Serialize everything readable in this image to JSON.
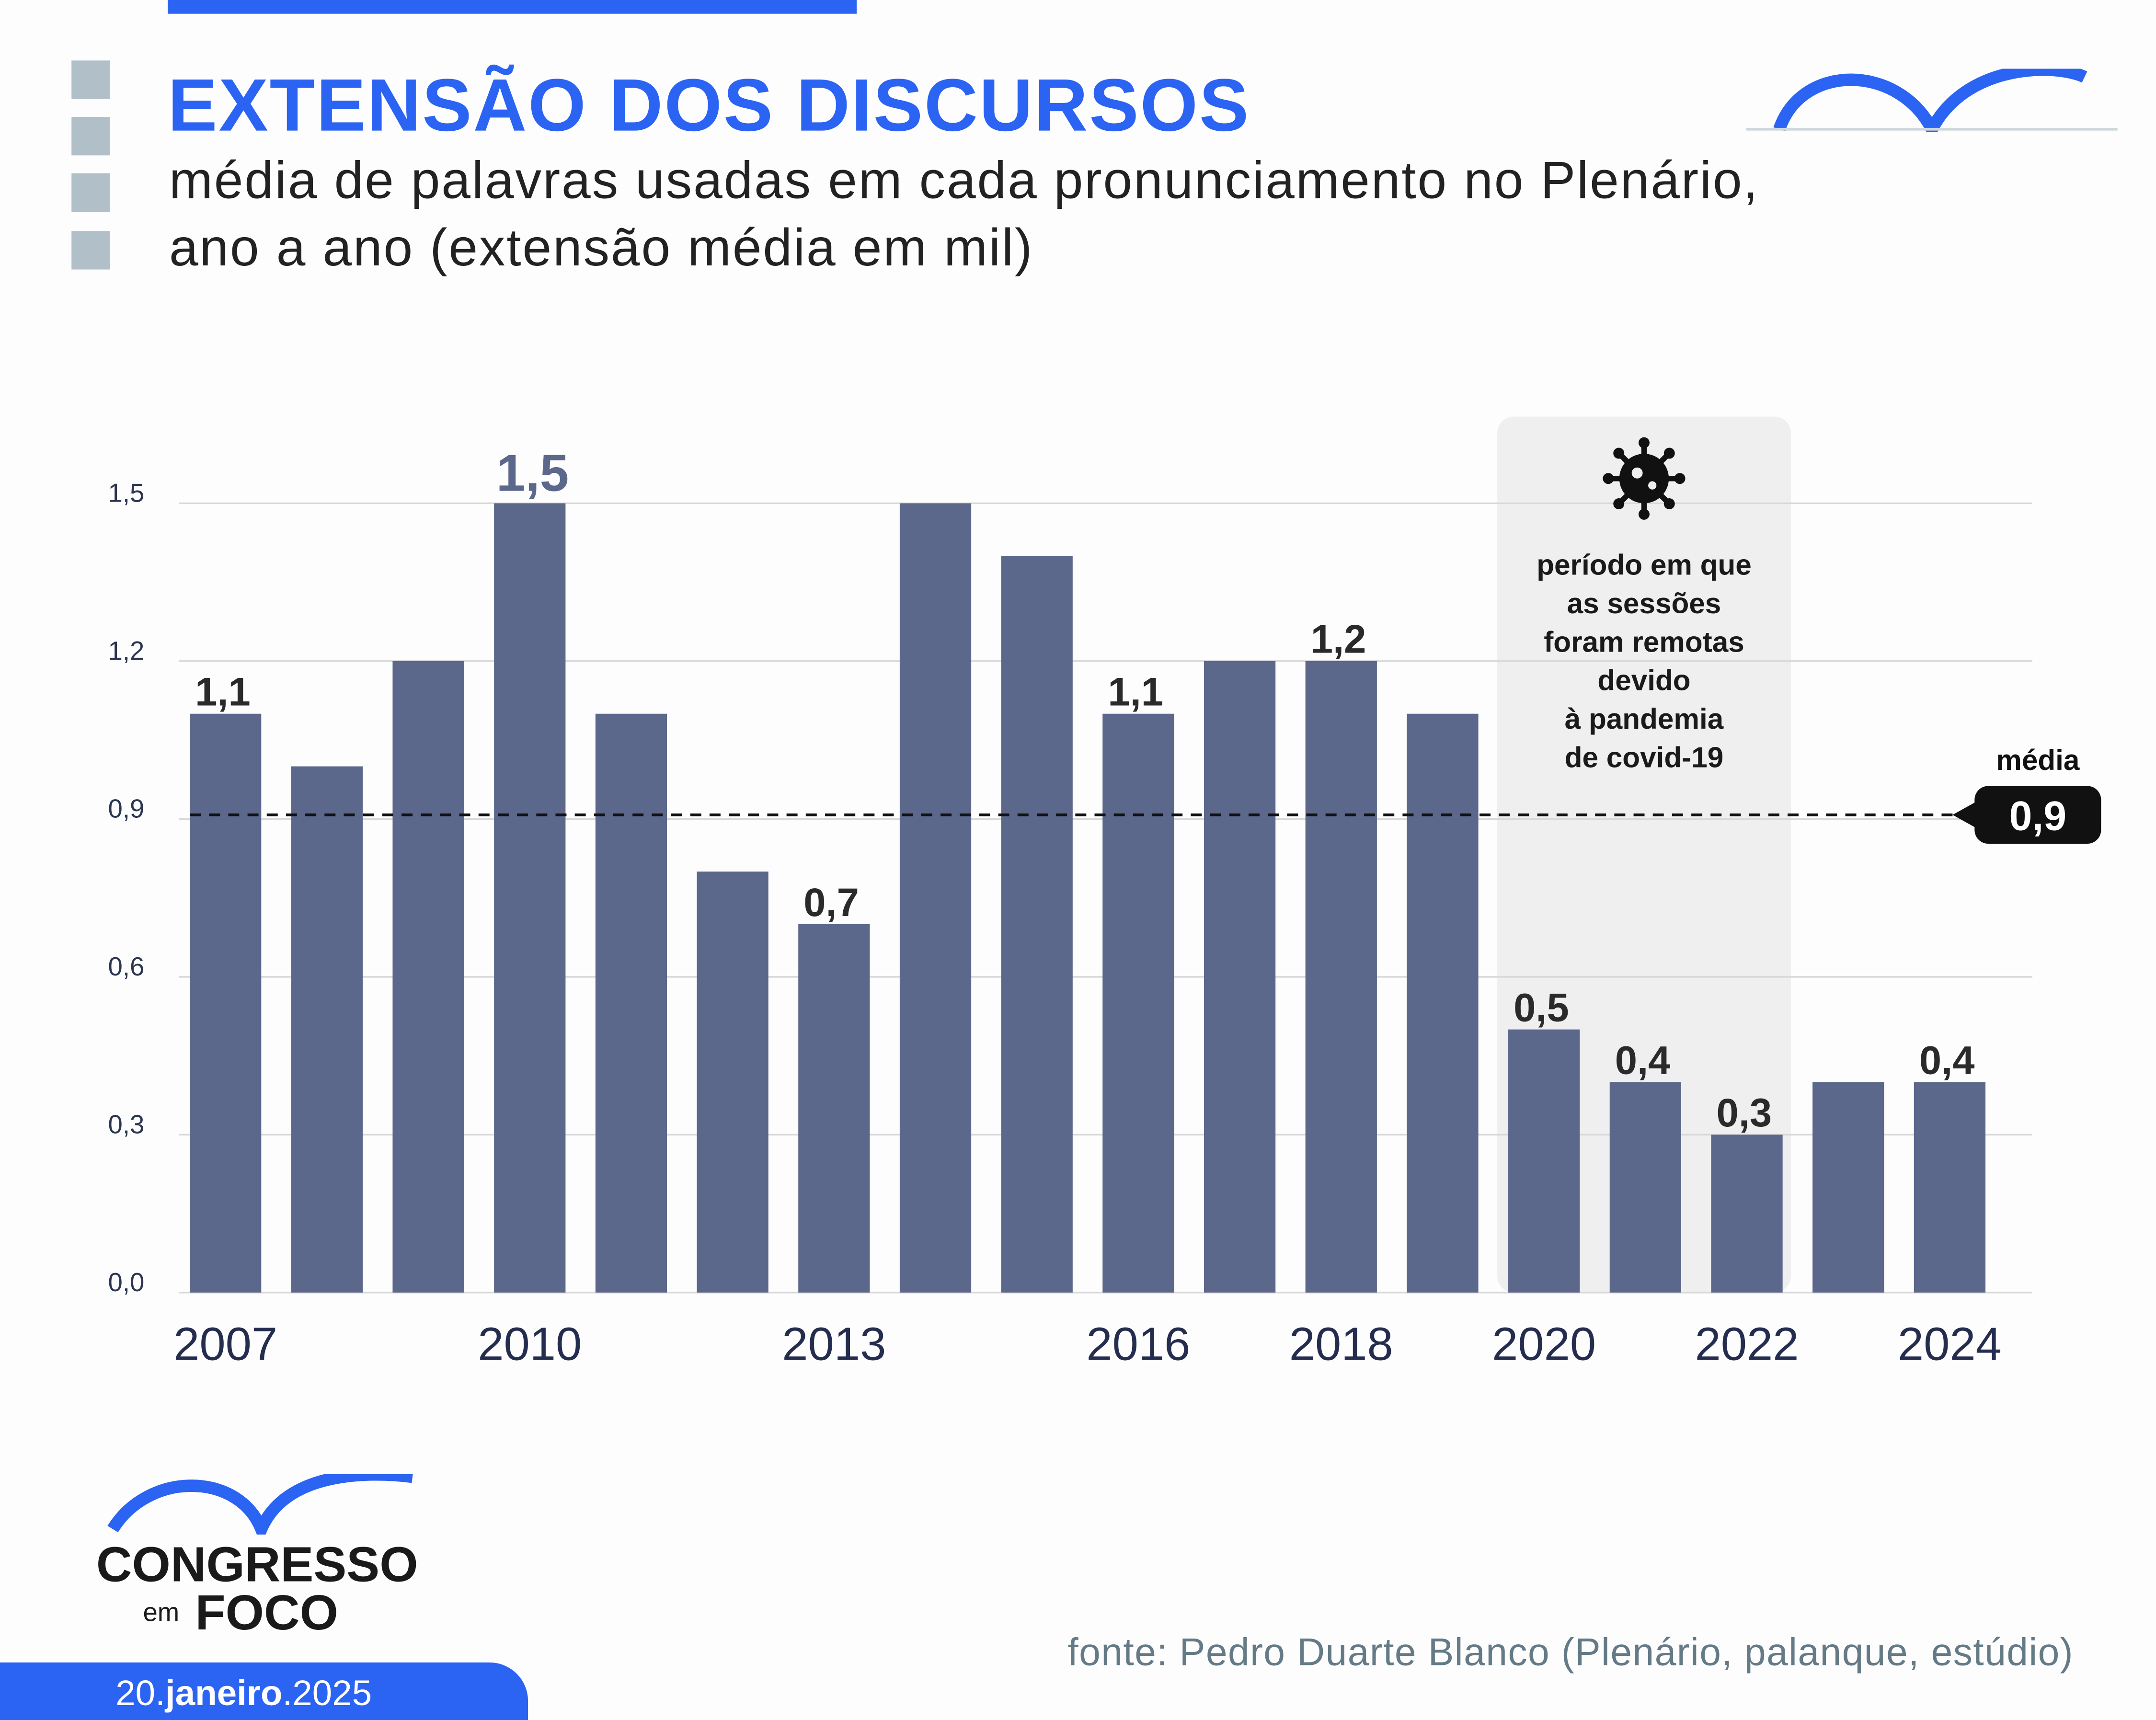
{
  "header": {
    "title": "EXTENSÃO DOS DISCURSOS",
    "subtitle": "média de palavras usadas em cada pronunciamento no Plenário, ano a ano (extensão média em mil)"
  },
  "colors": {
    "accent": "#2b63f3",
    "bar": "#5b678b",
    "grid": "#d8d8d8",
    "covid_band": "#efefef",
    "label": "#2a2a2a",
    "source": "#647a86"
  },
  "chart_data": {
    "type": "bar",
    "categories": [
      "2007",
      "2008",
      "2009",
      "2010",
      "2011",
      "2012",
      "2013",
      "2014",
      "2015",
      "2016",
      "2017",
      "2018",
      "2019",
      "2020",
      "2021",
      "2022",
      "2023",
      "2024"
    ],
    "values": [
      1.1,
      1.0,
      1.2,
      1.5,
      1.1,
      0.8,
      0.7,
      1.5,
      1.4,
      1.1,
      1.2,
      1.2,
      1.1,
      0.5,
      0.4,
      0.3,
      0.4,
      0.4
    ],
    "data_labels": {
      "2007": "1,1",
      "2010": "1,5",
      "2013": "0,7",
      "2016": "1,1",
      "2018": "1,2",
      "2020": "0,5",
      "2021": "0,4",
      "2022": "0,3",
      "2024": "0,4"
    },
    "x_tick_labels": [
      "2007",
      "2010",
      "2013",
      "2016",
      "2018",
      "2020",
      "2022",
      "2024"
    ],
    "y_ticks": [
      0,
      0.3,
      0.6,
      0.9,
      1.2,
      1.5
    ],
    "y_tick_labels": [
      "0,0",
      "0,3",
      "0,6",
      "0,9",
      "1,2",
      "1,5"
    ],
    "ylim": [
      0,
      1.5
    ],
    "grid": true,
    "mean": {
      "value": 0.9,
      "label": "média",
      "value_label": "0,9"
    },
    "annotation": {
      "icon": "virus-icon",
      "start": "2020",
      "end": "2022",
      "text": [
        "período em que",
        "as sessões",
        "foram remotas",
        "devido",
        "à pandemia",
        "de covid-19"
      ]
    }
  },
  "footer": {
    "source": "fonte: Pedro Duarte Blanco (Plenário, palanque, estúdio)",
    "date": {
      "day": "20.",
      "month": "janeiro",
      "year": ".2025"
    },
    "brand": {
      "line1": "CONGRESSO",
      "em": "em",
      "line2": "FOCO"
    }
  }
}
